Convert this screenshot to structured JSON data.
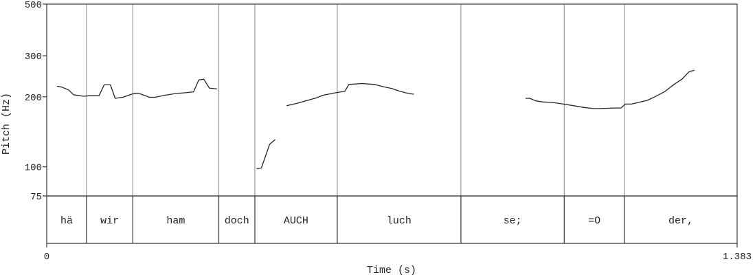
{
  "chart_data": {
    "type": "line",
    "xlabel": "Time (s)",
    "ylabel": "Pitch (Hz)",
    "xlim": [
      0,
      1.383
    ],
    "ylim": [
      75,
      500
    ],
    "y_scale": "log",
    "x_tick_labels": [
      "0",
      "1.383"
    ],
    "y_ticks": [
      {
        "value": 500,
        "label": "500"
      },
      {
        "value": 300,
        "label": "300"
      },
      {
        "value": 200,
        "label": "200"
      },
      {
        "value": 100,
        "label": "100"
      },
      {
        "value": 75,
        "label": "75"
      }
    ],
    "boundaries": [
      0.0797,
      0.1724,
      0.3447,
      0.4169,
      0.5819,
      0.8296,
      1.0366,
      1.1573
    ],
    "words": [
      {
        "label": "hä",
        "start": 0,
        "end": 0.0797
      },
      {
        "label": "wir",
        "start": 0.0797,
        "end": 0.1724
      },
      {
        "label": "ham",
        "start": 0.1724,
        "end": 0.3447
      },
      {
        "label": "doch",
        "start": 0.3447,
        "end": 0.4169
      },
      {
        "label": "AUCH",
        "start": 0.4169,
        "end": 0.5819
      },
      {
        "label": "luch",
        "start": 0.5819,
        "end": 0.8296
      },
      {
        "label": "se;",
        "start": 0.8296,
        "end": 1.0366
      },
      {
        "label": "=O",
        "start": 1.0366,
        "end": 1.1573
      },
      {
        "label": "der,",
        "start": 1.1573,
        "end": 1.383
      }
    ],
    "series": [
      {
        "points": [
          [
            0.0206,
            222
          ],
          [
            0.0302,
            220
          ],
          [
            0.0439,
            214
          ],
          [
            0.0536,
            204
          ],
          [
            0.0741,
            201
          ],
          [
            0.0839,
            202
          ],
          [
            0.1046,
            202
          ],
          [
            0.1152,
            225
          ],
          [
            0.1275,
            225
          ],
          [
            0.1371,
            197
          ],
          [
            0.1524,
            199
          ],
          [
            0.1636,
            203
          ],
          [
            0.1759,
            207
          ],
          [
            0.1869,
            206
          ],
          [
            0.206,
            199
          ],
          [
            0.2169,
            199
          ],
          [
            0.2362,
            203
          ],
          [
            0.2555,
            206
          ],
          [
            0.2761,
            208
          ],
          [
            0.2941,
            210
          ],
          [
            0.3045,
            236
          ],
          [
            0.3147,
            238
          ],
          [
            0.3257,
            218
          ],
          [
            0.3412,
            216
          ]
        ]
      },
      {
        "points": [
          [
            0.4204,
            98
          ],
          [
            0.4301,
            99
          ],
          [
            0.4465,
            125
          ],
          [
            0.4576,
            131
          ]
        ]
      },
      {
        "points": [
          [
            0.4803,
            183
          ],
          [
            0.4996,
            187
          ],
          [
            0.5188,
            192
          ],
          [
            0.5407,
            198
          ],
          [
            0.5531,
            203
          ],
          [
            0.5779,
            208
          ],
          [
            0.5971,
            211
          ],
          [
            0.6053,
            226
          ],
          [
            0.6315,
            228
          ],
          [
            0.6564,
            226
          ],
          [
            0.6741,
            221
          ],
          [
            0.6915,
            217
          ],
          [
            0.7052,
            212
          ],
          [
            0.719,
            208
          ],
          [
            0.7355,
            205
          ]
        ]
      },
      {
        "points": [
          [
            0.9592,
            197
          ],
          [
            0.9675,
            197
          ],
          [
            0.98,
            192
          ],
          [
            0.9937,
            190
          ],
          [
            1.014,
            189
          ],
          [
            1.0352,
            186
          ],
          [
            1.0559,
            183
          ],
          [
            1.0751,
            180
          ],
          [
            1.0944,
            178
          ],
          [
            1.1095,
            178
          ],
          [
            1.1371,
            179
          ],
          [
            1.15,
            179
          ],
          [
            1.1592,
            186
          ],
          [
            1.1715,
            186
          ],
          [
            1.1895,
            190
          ],
          [
            1.2032,
            193
          ],
          [
            1.2181,
            200
          ],
          [
            1.2373,
            210
          ],
          [
            1.2566,
            226
          ],
          [
            1.2725,
            238
          ],
          [
            1.2866,
            256
          ],
          [
            1.2972,
            260
          ]
        ]
      }
    ]
  }
}
